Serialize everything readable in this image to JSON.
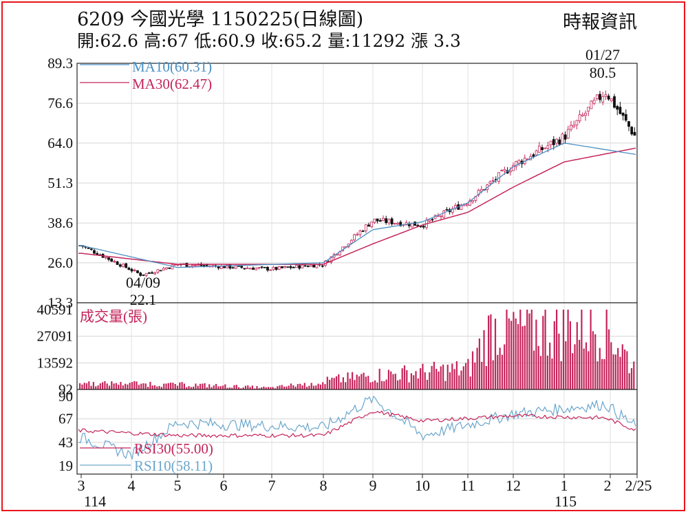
{
  "header": {
    "title": "6209  今國光學 1150225(日線圖)",
    "ohlc": "開:62.6 高:67 低:60.9 收:65.2 量:11292 漲 3.3",
    "source": "時報資訊"
  },
  "colors": {
    "frame": "#e8141a",
    "ma10": "#4a8fc2",
    "ma30": "#c4245a",
    "up_candle": "#c4245a",
    "down_candle": "#111111",
    "volume": "#c4245a",
    "rsi30": "#c4245a",
    "rsi10": "#6aa6cc"
  },
  "chart_data": [
    {
      "type": "candlestick",
      "panel": "price",
      "ylim": [
        13.3,
        89.3
      ],
      "yticks": [
        "89.3",
        "76.6",
        "64.0",
        "51.3",
        "38.6",
        "26.0",
        "13.3"
      ],
      "series_labels": {
        "ma10": "MA10(60.31)",
        "ma30": "MA30(62.47)"
      },
      "annotations": [
        {
          "date": "04/09",
          "value": "22.1",
          "kind": "low"
        },
        {
          "date": "01/27",
          "value": "80.5",
          "kind": "high"
        }
      ],
      "key_points": [
        {
          "x": "3",
          "close": 31.5
        },
        {
          "x": "04/09",
          "close": 22.1
        },
        {
          "x": "5",
          "close": 25.5
        },
        {
          "x": "7",
          "close": 24.0
        },
        {
          "x": "8",
          "close": 25.5
        },
        {
          "x": "9",
          "close": 39.5
        },
        {
          "x": "10",
          "close": 38.0
        },
        {
          "x": "11",
          "close": 45.5
        },
        {
          "x": "12",
          "close": 57.0
        },
        {
          "x": "1",
          "close": 66.0
        },
        {
          "x": "01/27",
          "close": 80.5
        },
        {
          "x": "2/25",
          "close": 65.2
        }
      ],
      "ma10_key_points": [
        {
          "x": "3",
          "value": 31.5
        },
        {
          "x": "5",
          "value": 24.5
        },
        {
          "x": "8",
          "value": 26.0
        },
        {
          "x": "9",
          "value": 36.5
        },
        {
          "x": "10",
          "value": 39.0
        },
        {
          "x": "11",
          "value": 45.0
        },
        {
          "x": "12",
          "value": 56.5
        },
        {
          "x": "1",
          "value": 64.0
        },
        {
          "x": "2/25",
          "value": 60.31
        }
      ],
      "ma30_key_points": [
        {
          "x": "3",
          "value": 29.0
        },
        {
          "x": "5",
          "value": 25.5
        },
        {
          "x": "8",
          "value": 25.5
        },
        {
          "x": "9",
          "value": 32.0
        },
        {
          "x": "10",
          "value": 38.0
        },
        {
          "x": "11",
          "value": 42.0
        },
        {
          "x": "12",
          "value": 50.0
        },
        {
          "x": "1",
          "value": 58.0
        },
        {
          "x": "2/25",
          "value": 62.47
        }
      ]
    },
    {
      "type": "bar",
      "panel": "volume",
      "title": "成交量(張)",
      "ylim": [
        92,
        40591
      ],
      "yticks": [
        "40591",
        "27091",
        "13592",
        "92"
      ],
      "key_points": [
        {
          "x": "4",
          "value": 4500
        },
        {
          "x": "7",
          "value": 1200
        },
        {
          "x": "9",
          "value": 9000
        },
        {
          "x": "11",
          "value": 13000
        },
        {
          "x": "11/20",
          "value": 39000
        },
        {
          "x": "12/15",
          "value": 38000
        },
        {
          "x": "01/27",
          "value": 40591
        },
        {
          "x": "2/25",
          "value": 11292
        }
      ]
    },
    {
      "type": "line",
      "panel": "rsi",
      "ylim": [
        19,
        90
      ],
      "yticks": [
        "90",
        "67",
        "43",
        "19"
      ],
      "series": [
        {
          "name": "RSI30(55.00)",
          "key_points": [
            {
              "x": "3",
              "value": 55
            },
            {
              "x": "5",
              "value": 50
            },
            {
              "x": "8",
              "value": 50
            },
            {
              "x": "9",
              "value": 75
            },
            {
              "x": "10",
              "value": 65
            },
            {
              "x": "12",
              "value": 70
            },
            {
              "x": "01/27",
              "value": 68
            },
            {
              "x": "2/25",
              "value": 55.0
            }
          ]
        },
        {
          "name": "RSI10(58.11)",
          "key_points": [
            {
              "x": "3",
              "value": 48
            },
            {
              "x": "4",
              "value": 30
            },
            {
              "x": "5",
              "value": 63
            },
            {
              "x": "8",
              "value": 58
            },
            {
              "x": "9",
              "value": 88
            },
            {
              "x": "10",
              "value": 50
            },
            {
              "x": "12",
              "value": 72
            },
            {
              "x": "01/27",
              "value": 82
            },
            {
              "x": "2/25",
              "value": 58.11
            }
          ]
        }
      ]
    }
  ],
  "x_axis": {
    "months": [
      "3",
      "4",
      "5",
      "6",
      "7",
      "8",
      "9",
      "10",
      "11",
      "12",
      "1",
      "2",
      "2/25"
    ],
    "years": [
      "114",
      "115"
    ]
  }
}
